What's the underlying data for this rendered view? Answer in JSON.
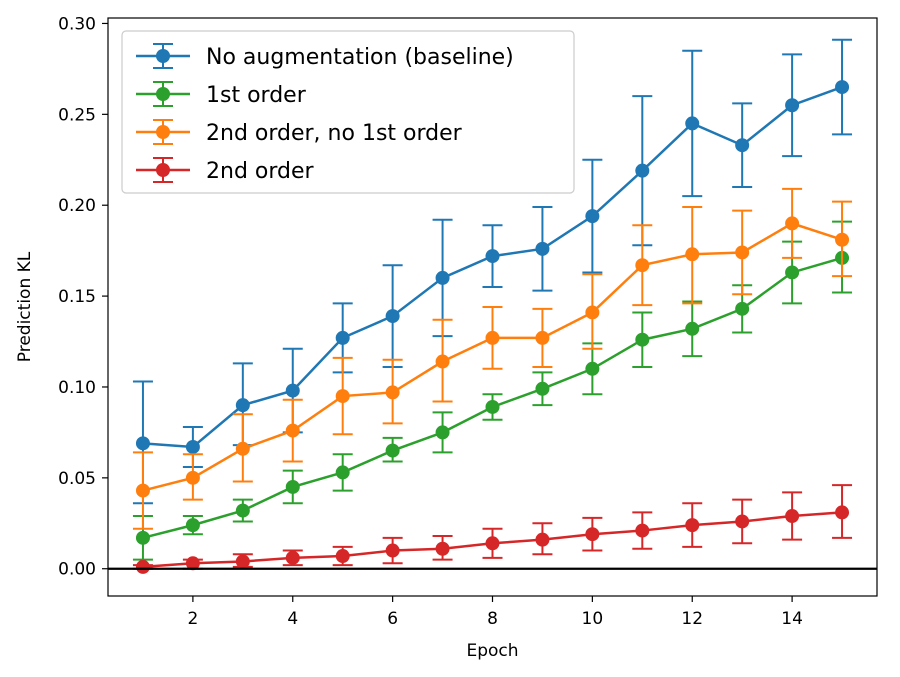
{
  "chart_data": {
    "type": "line",
    "title": "",
    "xlabel": "Epoch",
    "ylabel": "Prediction KL",
    "xlim": [
      0.3,
      15.7
    ],
    "ylim": [
      -0.015,
      0.303
    ],
    "xticks": [
      2,
      4,
      6,
      8,
      10,
      12,
      14
    ],
    "yticks": [
      0.0,
      0.05,
      0.1,
      0.15,
      0.2,
      0.25,
      0.3
    ],
    "ytick_labels": [
      "0.00",
      "0.05",
      "0.10",
      "0.15",
      "0.20",
      "0.25",
      "0.30"
    ],
    "xtick_labels": [
      "2",
      "4",
      "6",
      "8",
      "10",
      "12",
      "14"
    ],
    "x": [
      1,
      2,
      3,
      4,
      5,
      6,
      7,
      8,
      9,
      10,
      11,
      12,
      13,
      14,
      15
    ],
    "reference_line": 0,
    "legend_position": "top-left",
    "grid": false,
    "series": [
      {
        "name": "No augmentation (baseline)",
        "color": "#1f77b4",
        "values": [
          0.069,
          0.067,
          0.09,
          0.098,
          0.127,
          0.139,
          0.16,
          0.172,
          0.176,
          0.194,
          0.219,
          0.245,
          0.233,
          0.255,
          0.265
        ],
        "err_low": [
          0.036,
          0.056,
          0.068,
          0.075,
          0.108,
          0.111,
          0.128,
          0.155,
          0.153,
          0.163,
          0.178,
          0.205,
          0.21,
          0.227,
          0.239
        ],
        "err_high": [
          0.103,
          0.078,
          0.113,
          0.121,
          0.146,
          0.167,
          0.192,
          0.189,
          0.199,
          0.225,
          0.26,
          0.285,
          0.256,
          0.283,
          0.291
        ]
      },
      {
        "name": "1st order",
        "color": "#2ca02c",
        "values": [
          0.017,
          0.024,
          0.032,
          0.045,
          0.053,
          0.065,
          0.075,
          0.089,
          0.099,
          0.11,
          0.126,
          0.132,
          0.143,
          0.163,
          0.171
        ],
        "err_low": [
          0.005,
          0.019,
          0.026,
          0.036,
          0.043,
          0.059,
          0.064,
          0.082,
          0.09,
          0.096,
          0.111,
          0.117,
          0.13,
          0.146,
          0.152
        ],
        "err_high": [
          0.029,
          0.029,
          0.038,
          0.054,
          0.063,
          0.072,
          0.086,
          0.096,
          0.108,
          0.124,
          0.141,
          0.147,
          0.156,
          0.18,
          0.191
        ]
      },
      {
        "name": "2nd order, no 1st order",
        "color": "#ff7f0e",
        "values": [
          0.043,
          0.05,
          0.066,
          0.076,
          0.095,
          0.097,
          0.114,
          0.127,
          0.127,
          0.141,
          0.167,
          0.173,
          0.174,
          0.19,
          0.181
        ],
        "err_low": [
          0.022,
          0.038,
          0.048,
          0.059,
          0.074,
          0.08,
          0.092,
          0.11,
          0.111,
          0.121,
          0.145,
          0.146,
          0.151,
          0.171,
          0.161
        ],
        "err_high": [
          0.064,
          0.063,
          0.085,
          0.093,
          0.116,
          0.115,
          0.137,
          0.144,
          0.143,
          0.162,
          0.189,
          0.199,
          0.197,
          0.209,
          0.202
        ]
      },
      {
        "name": "2nd order",
        "color": "#d62728",
        "values": [
          0.001,
          0.003,
          0.004,
          0.006,
          0.007,
          0.01,
          0.011,
          0.014,
          0.016,
          0.019,
          0.021,
          0.024,
          0.026,
          0.029,
          0.031
        ],
        "err_low": [
          0.0,
          0.0,
          0.001,
          0.002,
          0.002,
          0.003,
          0.005,
          0.006,
          0.008,
          0.01,
          0.011,
          0.012,
          0.014,
          0.016,
          0.017
        ],
        "err_high": [
          0.002,
          0.005,
          0.008,
          0.01,
          0.012,
          0.017,
          0.018,
          0.022,
          0.025,
          0.028,
          0.031,
          0.036,
          0.038,
          0.042,
          0.046
        ]
      }
    ]
  }
}
